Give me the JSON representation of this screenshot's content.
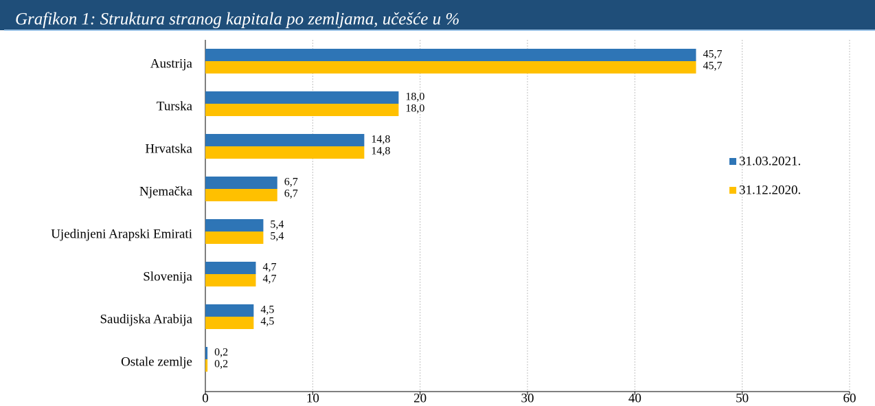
{
  "chart_data": {
    "type": "bar",
    "orientation": "horizontal",
    "title": "Grafikon 1: Struktura stranog kapitala po zemljama, učešće u %",
    "categories": [
      "Austrija",
      "Turska",
      "Hrvatska",
      "Njemačka",
      "Ujedinjeni Arapski Emirati",
      "Slovenija",
      "Saudijska Arabija",
      "Ostale zemlje"
    ],
    "series": [
      {
        "name": "31.03.2021.",
        "color": "#2e75b6",
        "values": [
          45.7,
          18.0,
          14.8,
          6.7,
          5.4,
          4.7,
          4.5,
          0.2
        ],
        "value_labels": [
          "45,7",
          "18,0",
          "14,8",
          "6,7",
          "5,4",
          "4,7",
          "4,5",
          "0,2"
        ]
      },
      {
        "name": "31.12.2020.",
        "color": "#ffc000",
        "values": [
          45.7,
          18.0,
          14.8,
          6.7,
          5.4,
          4.7,
          4.5,
          0.2
        ],
        "value_labels": [
          "45,7",
          "18,0",
          "14,8",
          "6,7",
          "5,4",
          "4,7",
          "4,5",
          "0,2"
        ]
      }
    ],
    "xlim": [
      0,
      60
    ],
    "xticks": [
      0,
      10,
      20,
      30,
      40,
      50,
      60
    ],
    "grid": true,
    "legend": "right"
  }
}
